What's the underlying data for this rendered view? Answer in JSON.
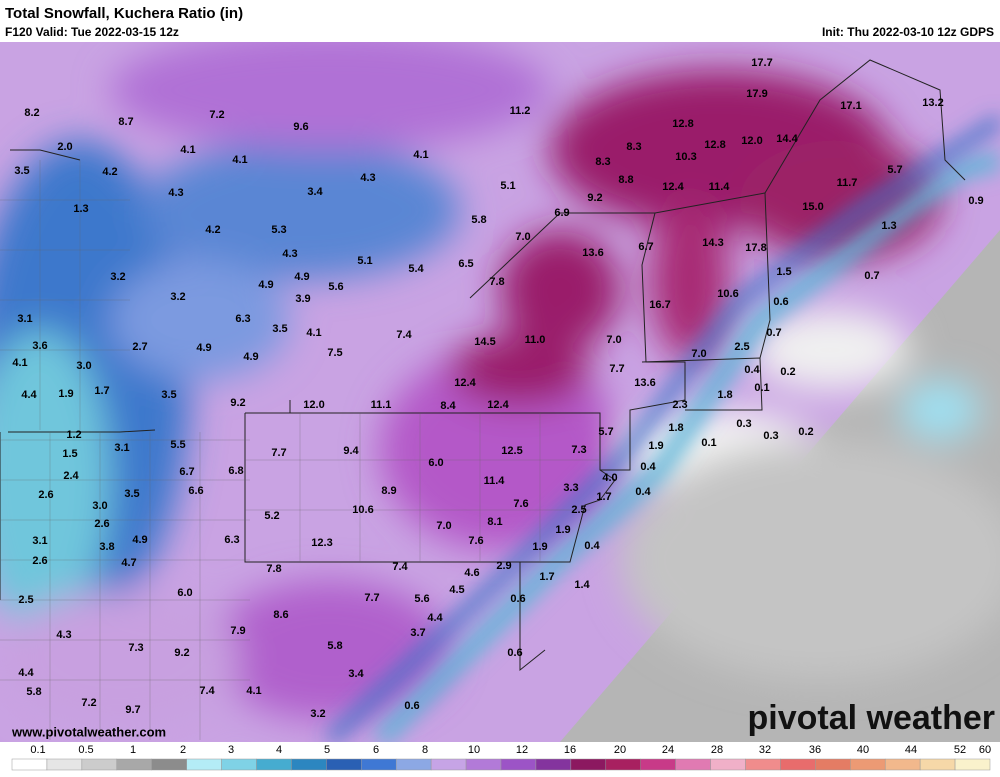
{
  "header": {
    "title": "Total Snowfall, Kuchera Ratio (in)",
    "valid": "F120 Valid: Tue 2022-03-15 12z",
    "init": "Init: Thu 2022-03-10 12z GDPS"
  },
  "map_labels": [
    "8.2",
    "8.7",
    "7.2",
    "9.6",
    "11.2",
    "17.7",
    "17.9",
    "13.2",
    "17.1",
    "2.0",
    "4.1",
    "4.1",
    "4.1",
    "12.8",
    "8.3",
    "12.8",
    "12.0",
    "14.4",
    "10.3",
    "8.3",
    "3.5",
    "4.2",
    "4.3",
    "3.4",
    "4.3",
    "5.1",
    "8.8",
    "12.4",
    "11.4",
    "11.7",
    "5.7",
    "9.2",
    "1.3",
    "4.2",
    "5.3",
    "5.8",
    "6.9",
    "15.0",
    "0.9",
    "1.3",
    "4.3",
    "5.1",
    "5.4",
    "6.5",
    "7.0",
    "13.6",
    "6.7",
    "14.3",
    "17.8",
    "3.2",
    "4.9",
    "4.9",
    "5.6",
    "7.8",
    "1.5",
    "0.7",
    "3.2",
    "3.9",
    "10.6",
    "0.6",
    "16.7",
    "3.1",
    "6.3",
    "3.5",
    "4.1",
    "7.4",
    "0.7",
    "3.6",
    "2.7",
    "4.9",
    "14.5",
    "11.0",
    "7.0",
    "7.0",
    "2.5",
    "4.1",
    "3.0",
    "7.5",
    "4.9",
    "7.7",
    "0.4",
    "0.2",
    "4.4",
    "1.9",
    "1.7",
    "3.5",
    "12.4",
    "13.6",
    "0.1",
    "1.8",
    "9.2",
    "12.0",
    "11.1",
    "8.4",
    "12.4",
    "2.3",
    "1.2",
    "5.7",
    "1.8",
    "0.3",
    "0.3",
    "0.2",
    "1.5",
    "3.1",
    "5.5",
    "7.7",
    "9.4",
    "12.5",
    "7.3",
    "1.9",
    "0.1",
    "2.4",
    "6.7",
    "6.8",
    "6.0",
    "0.4",
    "4.0",
    "2.6",
    "3.0",
    "3.5",
    "6.6",
    "8.9",
    "11.4",
    "3.3",
    "1.7",
    "0.4",
    "5.2",
    "10.6",
    "7.6",
    "2.6",
    "8.1",
    "7.0",
    "2.5",
    "3.1",
    "3.8",
    "4.9",
    "6.3",
    "12.3",
    "7.6",
    "1.9",
    "1.9",
    "0.4",
    "2.6",
    "4.7",
    "7.8",
    "7.4",
    "4.6",
    "2.9",
    "1.7",
    "1.4",
    "2.5",
    "6.0",
    "4.5",
    "7.7",
    "5.6",
    "0.6",
    "4.3",
    "8.6",
    "4.4",
    "7.9",
    "3.7",
    "7.3",
    "9.2",
    "5.8",
    "0.6",
    "4.4",
    "3.4",
    "5.8",
    "7.4",
    "4.1",
    "7.2",
    "0.6",
    "9.7",
    "3.2"
  ],
  "footer": {
    "url": "www.pivotalweather.com",
    "logo": "pivotal weather"
  },
  "colorbar": {
    "labels": [
      0.1,
      0.5,
      1,
      2,
      3,
      4,
      5,
      6,
      8,
      10,
      12,
      16,
      20,
      24,
      28,
      32,
      36,
      40,
      44,
      52,
      60
    ],
    "colors": [
      "#ffffff",
      "#e6e6e6",
      "#cccccc",
      "#a8a8a8",
      "#8c8c8c",
      "#b4ecf6",
      "#7fd2e6",
      "#46acd0",
      "#2c86c0",
      "#2a60b4",
      "#3f78d4",
      "#8ca8e4",
      "#c6a4e6",
      "#b27ad8",
      "#9c54c6",
      "#84349e",
      "#8c1860",
      "#a82060",
      "#c83a88",
      "#e07ab2",
      "#f0b0c8",
      "#f08c8c",
      "#e86c6c",
      "#e47c64",
      "#ec9a74",
      "#f2b88c",
      "#f6d8a8",
      "#faf2cc"
    ]
  }
}
